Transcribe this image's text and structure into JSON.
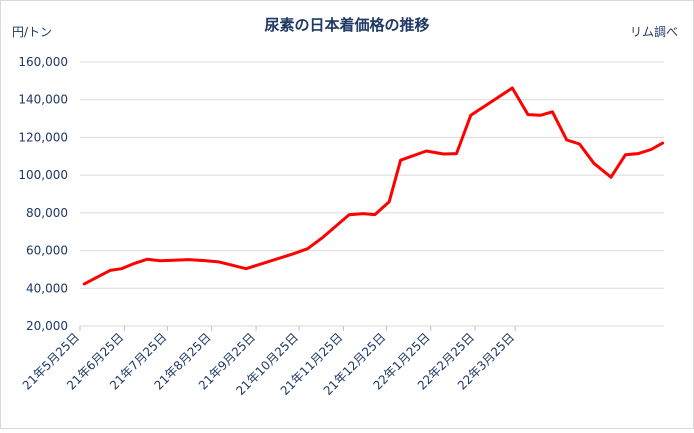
{
  "chart_data": {
    "type": "line",
    "title": "尿素の日本着価格の推移",
    "ylabel": "円/トン",
    "source": "リム調べ",
    "ylim": [
      20000,
      160000
    ],
    "y_ticks": [
      20000,
      40000,
      60000,
      80000,
      100000,
      120000,
      140000,
      160000
    ],
    "y_tick_labels": [
      "20,000",
      "40,000",
      "60,000",
      "80,000",
      "100,000",
      "120,000",
      "140,000",
      "160,000"
    ],
    "x_tick_labels": [
      "21年5月25日",
      "21年6月25日",
      "21年7月25日",
      "21年8月25日",
      "21年9月25日",
      "21年10月25日",
      "21年11月25日",
      "21年12月25日",
      "22年1月25日",
      "22年2月25日",
      "22年3月25日"
    ],
    "grid": true,
    "line_color": "#ff0000",
    "series": [
      {
        "values": [
          {
            "x": "2021-05-28",
            "y": 42300
          },
          {
            "x": "2021-06-05",
            "y": 45500
          },
          {
            "x": "2021-06-15",
            "y": 49500
          },
          {
            "x": "2021-06-23",
            "y": 50400
          },
          {
            "x": "2021-07-02",
            "y": 53200
          },
          {
            "x": "2021-07-11",
            "y": 55400
          },
          {
            "x": "2021-07-20",
            "y": 54600
          },
          {
            "x": "2021-08-09",
            "y": 55200
          },
          {
            "x": "2021-08-20",
            "y": 54700
          },
          {
            "x": "2021-08-30",
            "y": 54000
          },
          {
            "x": "2021-09-08",
            "y": 52300
          },
          {
            "x": "2021-09-18",
            "y": 50400
          },
          {
            "x": "2021-10-21",
            "y": 58300
          },
          {
            "x": "2021-10-31",
            "y": 61000
          },
          {
            "x": "2021-11-10",
            "y": 66600
          },
          {
            "x": "2021-11-29",
            "y": 79000
          },
          {
            "x": "2021-12-09",
            "y": 79600
          },
          {
            "x": "2021-12-17",
            "y": 79100
          },
          {
            "x": "2021-12-27",
            "y": 85900
          },
          {
            "x": "2022-01-04",
            "y": 107900
          },
          {
            "x": "2022-01-22",
            "y": 112800
          },
          {
            "x": "2022-02-03",
            "y": 111200
          },
          {
            "x": "2022-02-12",
            "y": 111400
          },
          {
            "x": "2022-02-22",
            "y": 131800
          },
          {
            "x": "2022-03-23",
            "y": 146200
          },
          {
            "x": "2022-04-03",
            "y": 132100
          },
          {
            "x": "2022-04-12",
            "y": 131800
          },
          {
            "x": "2022-04-20",
            "y": 133600
          },
          {
            "x": "2022-04-30",
            "y": 118700
          },
          {
            "x": "2022-05-09",
            "y": 116500
          },
          {
            "x": "2022-05-19",
            "y": 106300
          },
          {
            "x": "2022-05-31",
            "y": 98900
          },
          {
            "x": "2022-06-10",
            "y": 110800
          },
          {
            "x": "2022-06-19",
            "y": 111400
          },
          {
            "x": "2022-06-28",
            "y": 113600
          },
          {
            "x": "2022-07-06",
            "y": 117000
          }
        ]
      }
    ]
  }
}
